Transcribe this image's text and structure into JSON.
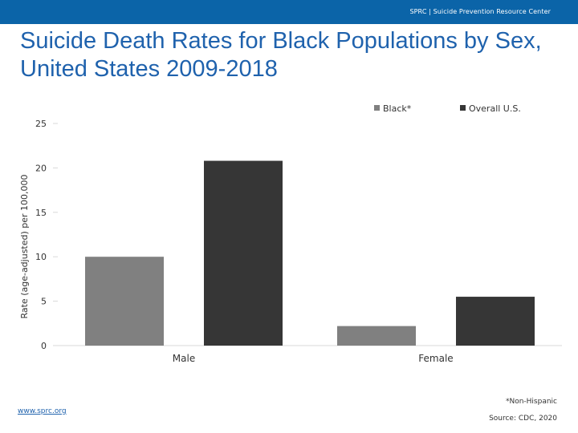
{
  "header": {
    "text": "SPRC  |  Suicide Prevention Resource Center"
  },
  "colors": {
    "header_bg": "#0b64a8",
    "title": "#1f62ad",
    "black_series": "#808080",
    "overall_series": "#363636"
  },
  "chart_data": {
    "type": "bar",
    "title": "Suicide Death Rates for Black Populations by Sex, United States 2009-2018",
    "categories": [
      "Male",
      "Female"
    ],
    "series": [
      {
        "name": "Black*",
        "values": [
          10,
          2.2
        ],
        "color": "#808080"
      },
      {
        "name": "Overall U.S.",
        "values": [
          20.8,
          5.5
        ],
        "color": "#363636"
      }
    ],
    "xlabel": "",
    "ylabel": "Rate (age-adjusted) per 100,000",
    "ylim": [
      0,
      25
    ],
    "yticks": [
      0,
      5,
      10,
      15,
      20,
      25
    ],
    "grid": false,
    "legend_position": "top-right"
  },
  "footer": {
    "note": "*Non-Hispanic",
    "source": "Source: CDC, 2020",
    "link": "www.sprc.org"
  }
}
